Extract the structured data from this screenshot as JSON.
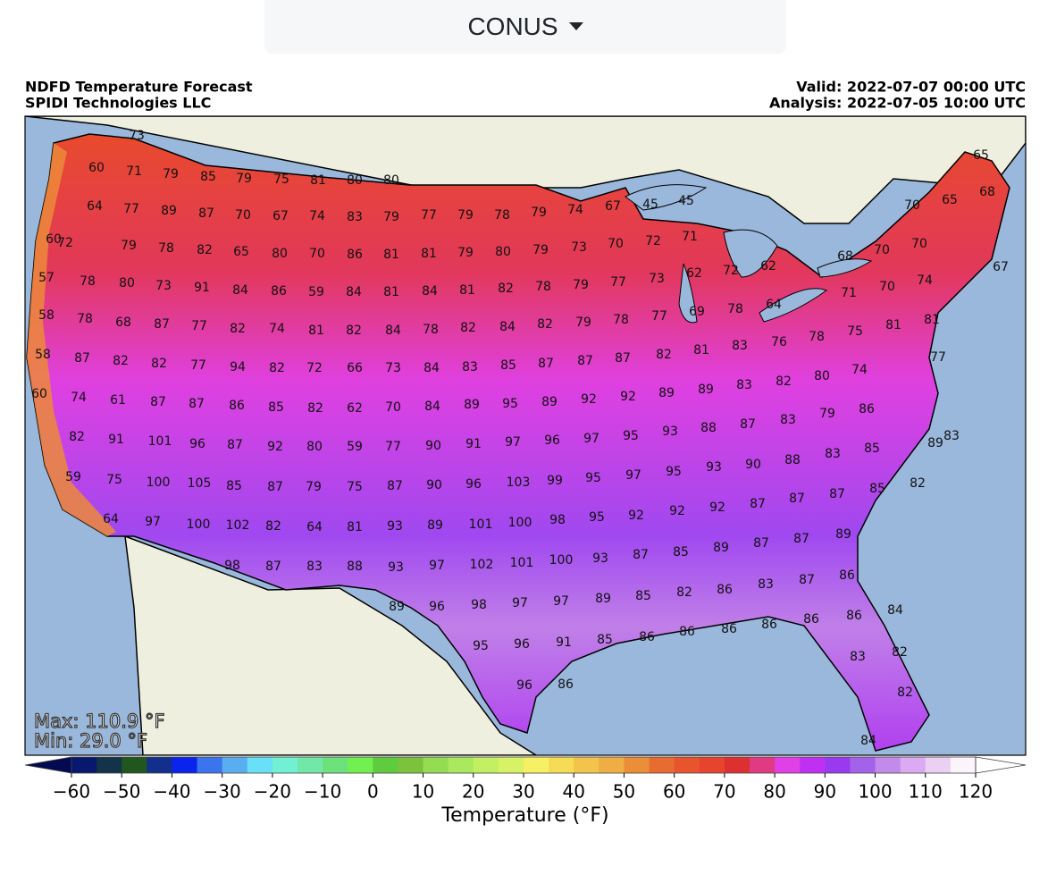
{
  "dropdown": {
    "label": "CONUS"
  },
  "map": {
    "title": "NDFD Temperature Forecast",
    "source": "SPIDI Technologies LLC",
    "valid": "Valid: 2022-07-07 00:00 UTC",
    "analysis": "Analysis: 2022-07-05 10:00 UTC",
    "max": "Max: 110.9 °F",
    "min": "Min: 29.0 °F",
    "station_values": [
      73,
      60,
      71,
      79,
      85,
      79,
      75,
      81,
      80,
      80,
      64,
      77,
      89,
      87,
      70,
      67,
      74,
      83,
      79,
      77,
      79,
      78,
      79,
      74,
      67,
      45,
      45,
      65,
      65,
      68,
      60,
      72,
      79,
      78,
      82,
      65,
      80,
      70,
      86,
      81,
      81,
      79,
      80,
      79,
      73,
      70,
      72,
      71,
      70,
      70,
      70,
      68,
      57,
      78,
      80,
      73,
      91,
      84,
      86,
      59,
      84,
      81,
      84,
      81,
      82,
      78,
      79,
      77,
      73,
      62,
      72,
      62,
      71,
      70,
      74,
      67,
      58,
      78,
      68,
      87,
      77,
      82,
      74,
      81,
      82,
      84,
      78,
      82,
      84,
      82,
      79,
      78,
      77,
      69,
      78,
      64,
      76,
      78,
      75,
      81,
      81,
      58,
      87,
      82,
      82,
      77,
      94,
      82,
      72,
      66,
      73,
      84,
      83,
      85,
      87,
      87,
      87,
      82,
      81,
      83,
      77,
      60,
      74,
      61,
      87,
      87,
      86,
      85,
      82,
      62,
      70,
      84,
      89,
      95,
      89,
      92,
      92,
      89,
      89,
      83,
      82,
      80,
      74,
      82,
      91,
      101,
      96,
      87,
      92,
      80,
      59,
      77,
      90,
      91,
      97,
      96,
      97,
      95,
      93,
      88,
      87,
      83,
      79,
      86,
      89,
      59,
      75,
      100,
      105,
      85,
      87,
      79,
      75,
      87,
      90,
      96,
      103,
      99,
      95,
      97,
      95,
      93,
      90,
      88,
      83,
      85,
      83,
      64,
      97,
      100,
      102,
      82,
      64,
      81,
      93,
      89,
      101,
      100,
      98,
      95,
      92,
      92,
      92,
      87,
      87,
      87,
      85,
      82,
      98,
      87,
      83,
      88,
      93,
      97,
      102,
      101,
      100,
      93,
      87,
      85,
      89,
      87,
      87,
      89,
      89,
      96,
      98,
      97,
      97,
      89,
      85,
      82,
      86,
      83,
      87,
      86,
      95,
      96,
      91,
      85,
      86,
      86,
      86,
      86,
      86,
      86,
      84,
      83,
      82,
      82,
      84,
      96,
      86
    ]
  },
  "colorbar": {
    "label": "Temperature (°F)",
    "range": [
      -60,
      120
    ],
    "ticks": [
      {
        "value": -60,
        "label": "−60"
      },
      {
        "value": -50,
        "label": "−50"
      },
      {
        "value": -40,
        "label": "−40"
      },
      {
        "value": -30,
        "label": "−30"
      },
      {
        "value": -20,
        "label": "−20"
      },
      {
        "value": -10,
        "label": "−10"
      },
      0,
      10,
      20,
      30,
      40,
      50,
      60,
      70,
      80,
      90,
      100,
      110,
      120
    ],
    "colors": [
      "#08186e",
      "#12334a",
      "#21561f",
      "#132f8c",
      "#0a24ee",
      "#3a74ee",
      "#58aef0",
      "#68e0f8",
      "#72f0d4",
      "#72e8a8",
      "#6ee27a",
      "#72f050",
      "#5ecc3e",
      "#7cc23c",
      "#94dc52",
      "#aae85e",
      "#c2f062",
      "#d8f266",
      "#f8f064",
      "#f6dc54",
      "#f2c44c",
      "#eeae44",
      "#ea8e3a",
      "#e86c30",
      "#e8542e",
      "#e6442c",
      "#de3030",
      "#e03a82",
      "#e040e6",
      "#c030f2",
      "#9a3af0",
      "#a462ea",
      "#c28aea",
      "#dcaaf2",
      "#ecd0f4",
      "#fbf4fb"
    ],
    "under_color": "#030a52",
    "over_color": "#ffffff"
  }
}
